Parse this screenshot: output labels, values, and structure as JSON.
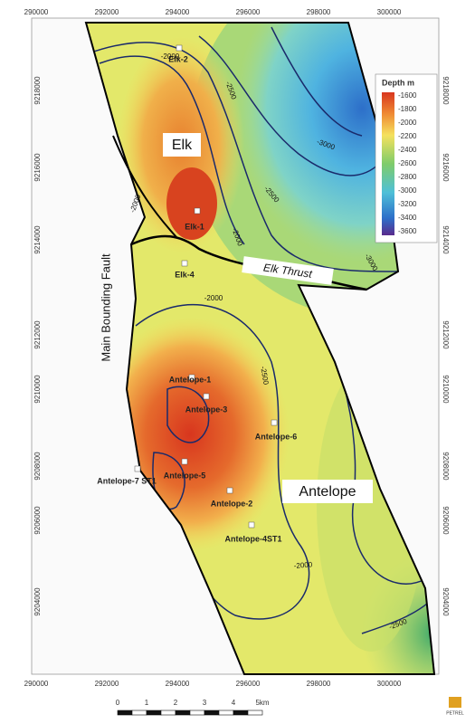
{
  "map": {
    "x_labels_top": [
      "290000",
      "292000",
      "294000",
      "296000",
      "298000",
      "300000"
    ],
    "x_labels_bottom": [
      "290000",
      "292000",
      "294000",
      "296000",
      "298000",
      "300000"
    ],
    "y_labels_left": [
      "9218000",
      "9216000",
      "9214000",
      "9212000",
      "9210000",
      "9208000",
      "9206000",
      "9204000"
    ],
    "y_labels_right": [
      "9218000",
      "9216000",
      "9214000",
      "9212000",
      "9210000",
      "9208000",
      "9206000",
      "9204000"
    ],
    "legend": {
      "title": "Depth m",
      "labels": [
        "-1600",
        "-1800",
        "-2000",
        "-2200",
        "-2400",
        "-2600",
        "-2800",
        "-3000",
        "-3200",
        "-3400",
        "-3600"
      ]
    },
    "field_labels": [
      "Elk",
      "Antelope"
    ],
    "fault_labels": [
      "Elk Thrust",
      "Main Bounding Fault"
    ],
    "wells": [
      "Elk-2",
      "Elk-1",
      "Elk-4",
      "Antelope-1",
      "Antelope-3",
      "Antelope-6",
      "Antelope-5",
      "Antelope-7 ST1",
      "Antelope-2",
      "Antelope-4ST1"
    ],
    "contour_labels": [
      "-2000",
      "-2500",
      "-3000",
      "-2000",
      "-2500",
      "-2000",
      "-3000",
      "-2000",
      "-2500",
      "-2000",
      "-2500"
    ],
    "scale_bar": {
      "ticks": [
        "0",
        "1",
        "2",
        "3",
        "4",
        "5km"
      ]
    },
    "logo": "PETREL"
  }
}
